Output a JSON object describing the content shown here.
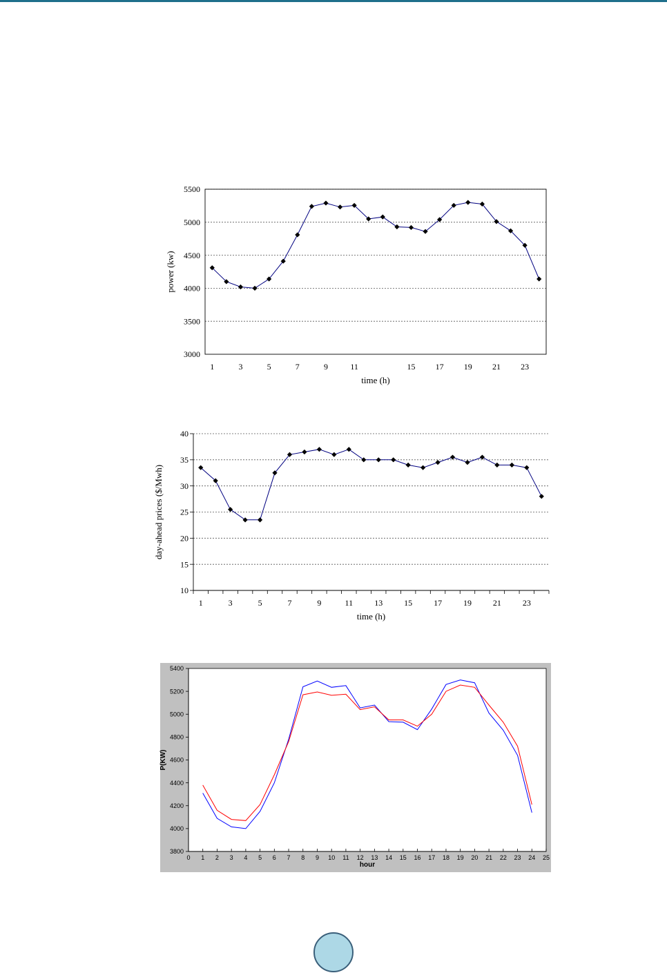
{
  "page": {
    "accent_color": "#1f6f8b",
    "badge_color": "#add8e6",
    "badge_icon": "page-number-circle-icon"
  },
  "chart_data": [
    {
      "type": "line",
      "title": "",
      "xlabel": "time (h)",
      "ylabel": "power (kw)",
      "x": [
        1,
        2,
        3,
        4,
        5,
        6,
        7,
        8,
        9,
        10,
        11,
        12,
        13,
        14,
        15,
        16,
        17,
        18,
        19,
        20,
        21,
        22,
        23,
        24
      ],
      "x_ticks": [
        "1",
        "3",
        "5",
        "7",
        "9",
        "11",
        "15",
        "17",
        "19",
        "21",
        "23"
      ],
      "x_tick_positions": [
        1,
        3,
        5,
        7,
        9,
        11,
        15,
        17,
        19,
        21,
        23
      ],
      "xlim": [
        0.5,
        24.5
      ],
      "y_ticks": [
        "3000",
        "3500",
        "4000",
        "4500",
        "5000",
        "5500"
      ],
      "ylim": [
        3000,
        5500
      ],
      "grid": "horizontal-dotted",
      "legend": "none",
      "series": [
        {
          "color": "#000080",
          "marker": "diamond",
          "values": [
            4310,
            4100,
            4020,
            4000,
            4140,
            4410,
            4810,
            5240,
            5290,
            5230,
            5255,
            5050,
            5080,
            4930,
            4920,
            4860,
            5040,
            5255,
            5300,
            5275,
            5010,
            4870,
            4650,
            4140
          ]
        }
      ]
    },
    {
      "type": "line",
      "title": "",
      "xlabel": "time (h)",
      "ylabel": "day-ahead prices ($/Mwh)",
      "x": [
        1,
        2,
        3,
        4,
        5,
        6,
        7,
        8,
        9,
        10,
        11,
        12,
        13,
        14,
        15,
        16,
        17,
        18,
        19,
        20,
        21,
        22,
        23,
        24
      ],
      "x_ticks": [
        "1",
        "3",
        "5",
        "7",
        "9",
        "11",
        "13",
        "15",
        "17",
        "19",
        "21",
        "23"
      ],
      "x_tick_positions": [
        1,
        3,
        5,
        7,
        9,
        11,
        13,
        15,
        17,
        19,
        21,
        23
      ],
      "xlim": [
        0.5,
        24.5
      ],
      "y_ticks": [
        "10",
        "15",
        "20",
        "25",
        "30",
        "35",
        "40"
      ],
      "ylim": [
        10,
        40
      ],
      "grid": "horizontal-dotted",
      "legend": "none",
      "series": [
        {
          "color": "#000080",
          "marker": "diamond",
          "values": [
            33.5,
            31,
            25.5,
            23.5,
            23.5,
            32.5,
            36,
            36.5,
            37,
            36,
            37,
            35,
            35,
            35,
            34,
            33.5,
            34.5,
            35.5,
            34.5,
            35.5,
            34,
            34,
            33.5,
            28
          ]
        }
      ]
    },
    {
      "type": "line",
      "title": "",
      "xlabel": "hour",
      "ylabel": "P(KW)",
      "x": [
        1,
        2,
        3,
        4,
        5,
        6,
        7,
        8,
        9,
        10,
        11,
        12,
        13,
        14,
        15,
        16,
        17,
        18,
        19,
        20,
        21,
        22,
        23,
        24
      ],
      "x_ticks": [
        "0",
        "1",
        "2",
        "3",
        "4",
        "5",
        "6",
        "7",
        "8",
        "9",
        "10",
        "11",
        "12",
        "13",
        "14",
        "15",
        "16",
        "17",
        "18",
        "19",
        "20",
        "21",
        "22",
        "23",
        "24",
        "25"
      ],
      "x_tick_positions": [
        0,
        1,
        2,
        3,
        4,
        5,
        6,
        7,
        8,
        9,
        10,
        11,
        12,
        13,
        14,
        15,
        16,
        17,
        18,
        19,
        20,
        21,
        22,
        23,
        24,
        25
      ],
      "xlim": [
        0,
        25
      ],
      "y_ticks": [
        "3800",
        "4000",
        "4200",
        "4400",
        "4600",
        "4800",
        "5000",
        "5200",
        "5400"
      ],
      "ylim": [
        3800,
        5400
      ],
      "grid": "none",
      "legend": "none",
      "frame_background": "#c0c0c0",
      "series": [
        {
          "color": "#0000ff",
          "marker": "none",
          "values": [
            4310,
            4090,
            4015,
            4000,
            4150,
            4400,
            4780,
            5240,
            5290,
            5235,
            5250,
            5055,
            5080,
            4935,
            4930,
            4865,
            5045,
            5260,
            5300,
            5275,
            5010,
            4860,
            4640,
            4140
          ]
        },
        {
          "color": "#ff0000",
          "marker": "none",
          "values": [
            4380,
            4160,
            4080,
            4070,
            4210,
            4470,
            4760,
            5170,
            5195,
            5165,
            5175,
            5040,
            5065,
            4950,
            4950,
            4895,
            5000,
            5200,
            5255,
            5235,
            5080,
            4930,
            4720,
            4210
          ]
        }
      ]
    }
  ]
}
